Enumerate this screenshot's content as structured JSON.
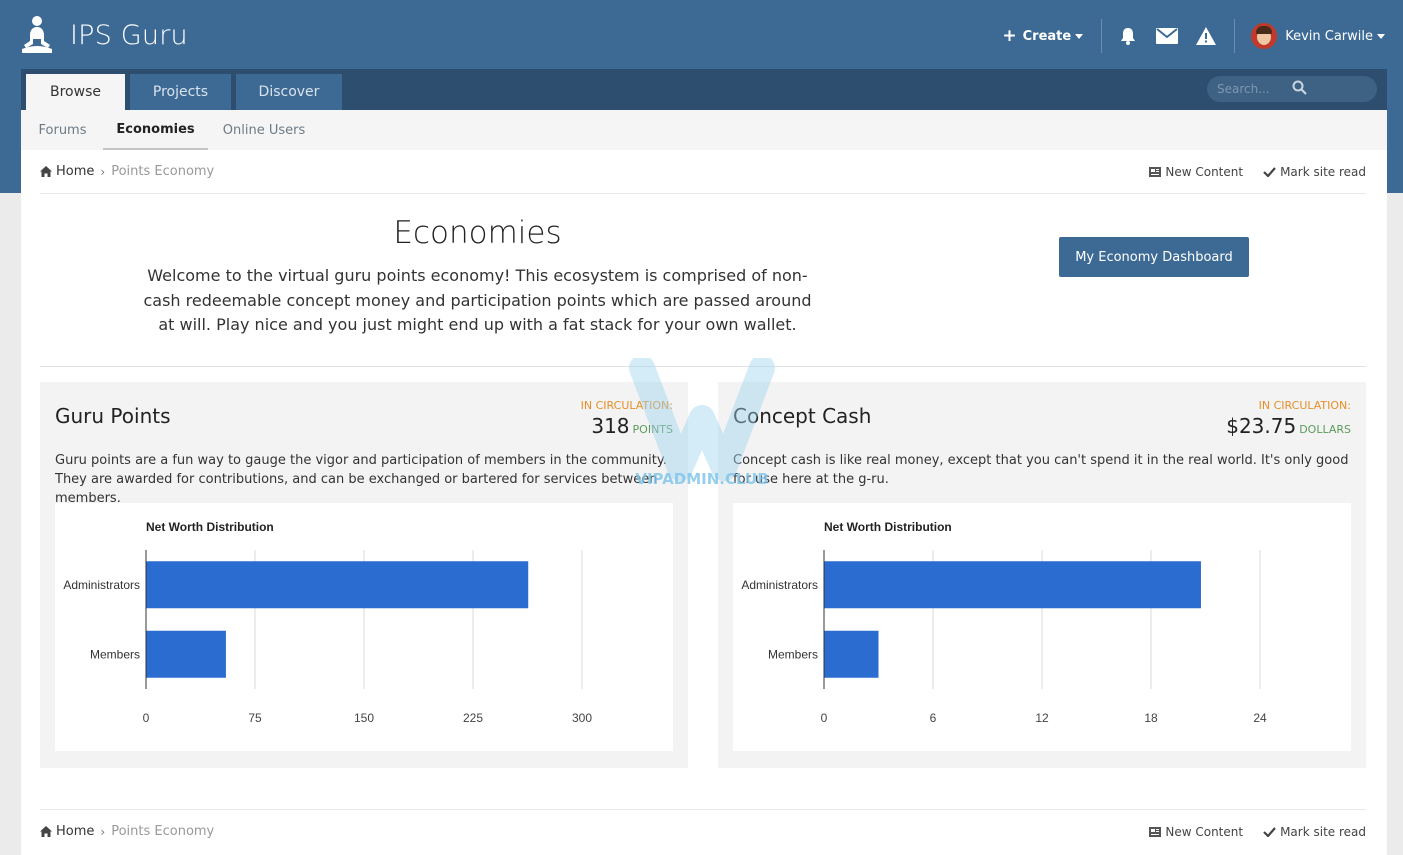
{
  "header": {
    "site_name": "IPS Guru",
    "create_label": "Create",
    "user_name": "Kevin Carwile"
  },
  "nav": {
    "tabs": [
      {
        "label": "Browse",
        "active": true
      },
      {
        "label": "Projects",
        "active": false
      },
      {
        "label": "Discover",
        "active": false
      }
    ],
    "search_placeholder": "Search...",
    "subnav": [
      {
        "label": "Forums",
        "active": false
      },
      {
        "label": "Economies",
        "active": true
      },
      {
        "label": "Online Users",
        "active": false
      }
    ]
  },
  "breadcrumb": {
    "home": "Home",
    "current": "Points Economy",
    "new_content": "New Content",
    "mark_read": "Mark site read"
  },
  "intro": {
    "title": "Economies",
    "text": "Welcome to the virtual guru points economy! This ecosystem is comprised of non-cash redeemable concept money and participation points which are passed around at will. Play nice and you just might end up with a fat stack for your own wallet.",
    "dashboard_button": "My Economy Dashboard"
  },
  "panels": [
    {
      "title": "Guru Points",
      "circulation_label": "IN CIRCULATION:",
      "circulation_value": "318",
      "circulation_unit": "POINTS",
      "description": "Guru points are a fun way to gauge the vigor and participation of members in the community. They are awarded for contributions, and can be exchanged or bartered for services between members."
    },
    {
      "title": "Concept Cash",
      "circulation_label": "IN CIRCULATION:",
      "circulation_value": "$23.75",
      "circulation_unit": "DOLLARS",
      "description": "Concept cash is like real money, except that you can't spend it in the real world. It's only good for use here at the g-ru."
    }
  ],
  "chart_data": [
    {
      "type": "bar",
      "orientation": "horizontal",
      "title": "Net Worth Distribution",
      "categories": [
        "Administrators",
        "Members"
      ],
      "values": [
        263,
        55
      ],
      "xlim": [
        0,
        300
      ],
      "xticks": [
        "0",
        "75",
        "150",
        "225",
        "300"
      ],
      "grid": true,
      "color": "#2a6ccf"
    },
    {
      "type": "bar",
      "orientation": "horizontal",
      "title": "Net Worth Distribution",
      "categories": [
        "Administrators",
        "Members"
      ],
      "values": [
        20.75,
        3
      ],
      "xlim": [
        0,
        24
      ],
      "xticks": [
        "0",
        "6",
        "12",
        "18",
        "24"
      ],
      "grid": true,
      "color": "#2a6ccf"
    }
  ],
  "watermark": "VIPADMIN.CLUB",
  "colors": {
    "brand": "#3d6a94",
    "tabbar": "#2d4e6f",
    "accent_orange": "#e88f28",
    "accent_green": "#5b9b5b"
  }
}
